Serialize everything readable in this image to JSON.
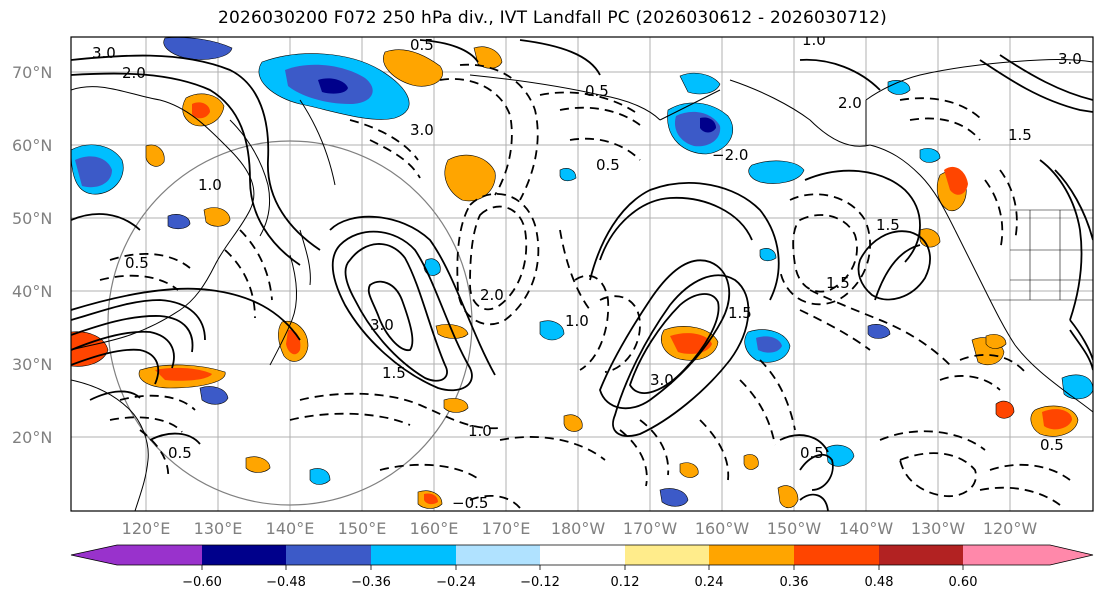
{
  "title": "2026030200 F072 250 hPa div., IVT Landfall PC (2026030612 - 2026030712)",
  "lat_labels": [
    "70°N",
    "60°N",
    "50°N",
    "40°N",
    "30°N",
    "20°N"
  ],
  "lat_values": [
    70,
    60,
    50,
    40,
    30,
    20
  ],
  "lon_labels": [
    "120°E",
    "130°E",
    "140°E",
    "150°E",
    "160°E",
    "170°E",
    "180°W",
    "170°W",
    "160°W",
    "150°W",
    "140°W",
    "130°W",
    "120°W"
  ],
  "colorbar": {
    "tick_labels": [
      "−0.60",
      "−0.48",
      "−0.36",
      "−0.24",
      "−0.12",
      "0.12",
      "0.24",
      "0.36",
      "0.48",
      "0.60"
    ],
    "colors": [
      "#9932cc",
      "#00008b",
      "#3c5ac8",
      "#00bfff",
      "#b0e2ff",
      "#ffffff",
      "#ffec8b",
      "#ffa500",
      "#ff4500",
      "#b22222",
      "#ff88aa"
    ]
  },
  "contour_labels": [
    "3.0",
    "2.0",
    "0.5",
    "1.0",
    "2.0",
    "3.0",
    "0.5",
    "1.5",
    "3.0",
    "1.0",
    "0.5",
    "−2.0",
    "1.5",
    "3.0",
    "1.5",
    "0.5",
    "1.0",
    "0.5",
    "1.5",
    "−0.5",
    "1.0",
    "0.5",
    "3.0",
    "2.0",
    "1.5",
    "0.5"
  ]
}
